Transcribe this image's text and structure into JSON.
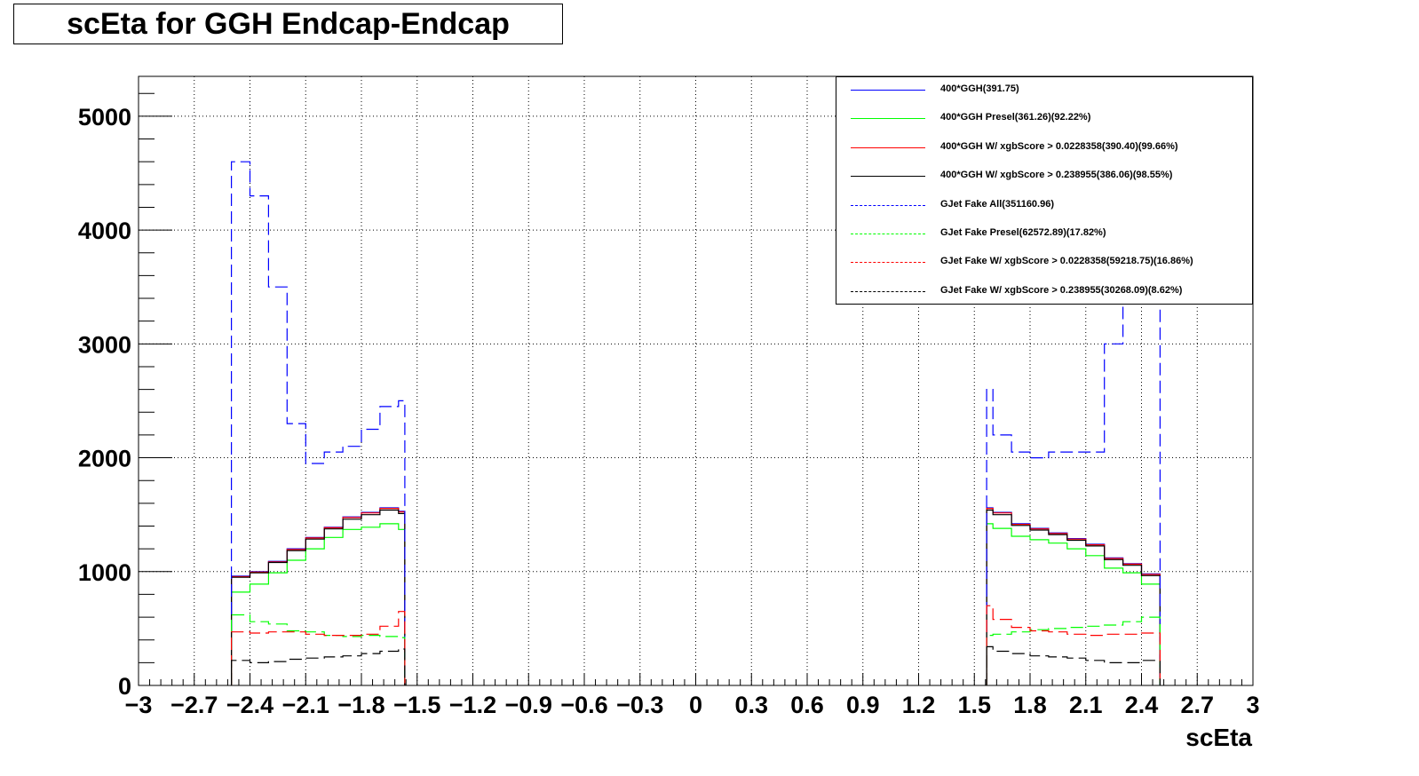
{
  "title": "scEta for GGH Endcap-Endcap",
  "chart_data": {
    "type": "line",
    "title": "scEta for GGH Endcap-Endcap",
    "xlabel": "scEta",
    "ylabel": "",
    "xlim": [
      -3,
      3
    ],
    "ylim": [
      0,
      5350
    ],
    "xticks": [
      -3,
      -2.7,
      -2.4,
      -2.1,
      -1.8,
      -1.5,
      -1.2,
      -0.9,
      -0.6,
      -0.3,
      0,
      0.3,
      0.6,
      0.9,
      1.2,
      1.5,
      1.8,
      2.1,
      2.4,
      2.7,
      3
    ],
    "xtick_labels": [
      "−3",
      "−2.7",
      "−2.4",
      "−2.1",
      "−1.8",
      "−1.5",
      "−1.2",
      "−0.9",
      "−0.6",
      "−0.3",
      "0",
      "0.3",
      "0.6",
      "0.9",
      "1.2",
      "1.5",
      "1.8",
      "2.1",
      "2.4",
      "2.7",
      "3"
    ],
    "yticks": [
      0,
      1000,
      2000,
      3000,
      4000,
      5000
    ],
    "ytick_labels": [
      "0",
      "1000",
      "2000",
      "3000",
      "4000",
      "5000"
    ],
    "grid": true,
    "legend_position": "top-right",
    "bin_edges": [
      -2.5,
      -2.4,
      -2.3,
      -2.2,
      -2.1,
      -2.0,
      -1.9,
      -1.8,
      -1.7,
      -1.6,
      -1.566,
      1.566,
      1.6,
      1.7,
      1.8,
      1.9,
      2.0,
      2.1,
      2.2,
      2.3,
      2.4,
      2.5
    ],
    "series": [
      {
        "name": "400*GGH(391.75)",
        "color": "#0000ff",
        "dash": "solid",
        "values": [
          960,
          1000,
          1090,
          1200,
          1300,
          1390,
          1480,
          1520,
          1560,
          1530,
          null,
          1560,
          1520,
          1420,
          1380,
          1340,
          1290,
          1240,
          1120,
          1070,
          980
        ]
      },
      {
        "name": "400*GGH Presel(361.26)(92.22%)",
        "color": "#00ff00",
        "dash": "solid",
        "values": [
          820,
          890,
          990,
          1100,
          1200,
          1300,
          1370,
          1390,
          1420,
          1370,
          null,
          1420,
          1380,
          1310,
          1280,
          1250,
          1200,
          1140,
          1030,
          990,
          890
        ]
      },
      {
        "name": "400*GGH W/ xgbScore > 0.0228358(390.40)(99.66%)",
        "color": "#ff0000",
        "dash": "solid",
        "values": [
          955,
          995,
          1085,
          1195,
          1295,
          1385,
          1475,
          1515,
          1555,
          1525,
          null,
          1555,
          1515,
          1415,
          1375,
          1335,
          1285,
          1235,
          1115,
          1065,
          975
        ]
      },
      {
        "name": "400*GGH W/ xgbScore > 0.238955(386.06)(98.55%)",
        "color": "#000000",
        "dash": "solid",
        "values": [
          950,
          990,
          1080,
          1185,
          1285,
          1375,
          1460,
          1500,
          1540,
          1510,
          null,
          1540,
          1500,
          1405,
          1365,
          1325,
          1275,
          1225,
          1105,
          1055,
          965
        ]
      },
      {
        "name": "GJet Fake All(351160.96)",
        "color": "#0000ff",
        "dash": "dashed",
        "values": [
          4600,
          4300,
          3500,
          2300,
          1950,
          2050,
          2100,
          2250,
          2450,
          2500,
          null,
          2600,
          2200,
          2050,
          2000,
          2050,
          2050,
          2050,
          3000,
          3800,
          4500
        ]
      },
      {
        "name": "GJet Fake Presel(62572.89)(17.82%)",
        "color": "#00ff00",
        "dash": "dashed",
        "values": [
          620,
          560,
          540,
          480,
          470,
          440,
          430,
          440,
          430,
          420,
          null,
          440,
          450,
          470,
          490,
          500,
          510,
          520,
          530,
          560,
          600
        ]
      },
      {
        "name": "GJet Fake W/ xgbScore > 0.0228358(59218.75)(16.86%)",
        "color": "#ff0000",
        "dash": "dashed",
        "values": [
          470,
          460,
          470,
          470,
          450,
          440,
          440,
          450,
          520,
          650,
          null,
          700,
          580,
          510,
          480,
          470,
          450,
          440,
          450,
          450,
          460
        ]
      },
      {
        "name": "GJet Fake W/ xgbScore > 0.238955(30268.09)(8.62%)",
        "color": "#000000",
        "dash": "dashed",
        "values": [
          220,
          200,
          210,
          230,
          240,
          250,
          260,
          280,
          300,
          320,
          null,
          340,
          300,
          280,
          260,
          250,
          240,
          220,
          200,
          200,
          220
        ]
      }
    ]
  }
}
